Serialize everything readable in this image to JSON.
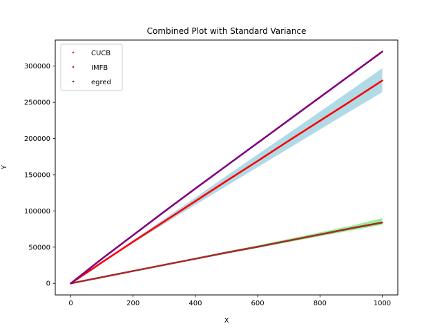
{
  "chart_data": {
    "type": "line",
    "title": "Combined Plot with Standard Variance",
    "xlabel": "X",
    "ylabel": "Y",
    "xlim": [
      -50,
      1050
    ],
    "ylim": [
      -16000,
      336000
    ],
    "x_ticks": [
      0,
      200,
      400,
      600,
      800,
      1000
    ],
    "y_ticks": [
      0,
      50000,
      100000,
      150000,
      200000,
      250000,
      300000
    ],
    "x_tick_labels": [
      "0",
      "200",
      "400",
      "600",
      "800",
      "1000"
    ],
    "y_tick_labels": [
      "0",
      "50000",
      "100000",
      "150000",
      "200000",
      "250000",
      "300000"
    ],
    "grid": false,
    "legend_position": "top-left",
    "x": [
      0,
      100,
      200,
      300,
      400,
      500,
      600,
      700,
      800,
      900,
      1000
    ],
    "series": [
      {
        "name": "CUCB",
        "color": "#ff0000",
        "band_color": "#add8e6",
        "values": [
          0,
          29000,
          57500,
          85500,
          113500,
          141500,
          169000,
          197000,
          224500,
          252000,
          280000
        ],
        "band_lower": [
          0,
          28300,
          55500,
          82000,
          108500,
          134500,
          160500,
          186500,
          212500,
          238500,
          264000
        ],
        "band_upper": [
          0,
          29700,
          59500,
          89000,
          118500,
          148500,
          178000,
          207500,
          237000,
          267000,
          297000
        ]
      },
      {
        "name": "IMFB",
        "color": "#a52a2a",
        "band_color": "#90ee90",
        "values": [
          0,
          8500,
          17000,
          25500,
          34000,
          42500,
          50500,
          59000,
          67500,
          76000,
          84000
        ],
        "band_lower": [
          0,
          8300,
          16500,
          24700,
          32800,
          41000,
          49000,
          57000,
          65000,
          73000,
          81000
        ],
        "band_upper": [
          0,
          8700,
          17500,
          26300,
          35200,
          44000,
          52500,
          61500,
          70500,
          79500,
          90000
        ]
      },
      {
        "name": "egred",
        "color": "#800080",
        "band_color": "#ffff99",
        "values": [
          0,
          34000,
          66500,
          99000,
          131000,
          162500,
          194000,
          225500,
          257000,
          288500,
          320000
        ],
        "band_lower": [
          0,
          33700,
          66000,
          98300,
          130200,
          161600,
          193000,
          224400,
          255800,
          287200,
          318500
        ],
        "band_upper": [
          0,
          34300,
          67000,
          99700,
          131800,
          163400,
          195000,
          226600,
          258200,
          289800,
          322000
        ]
      }
    ]
  }
}
